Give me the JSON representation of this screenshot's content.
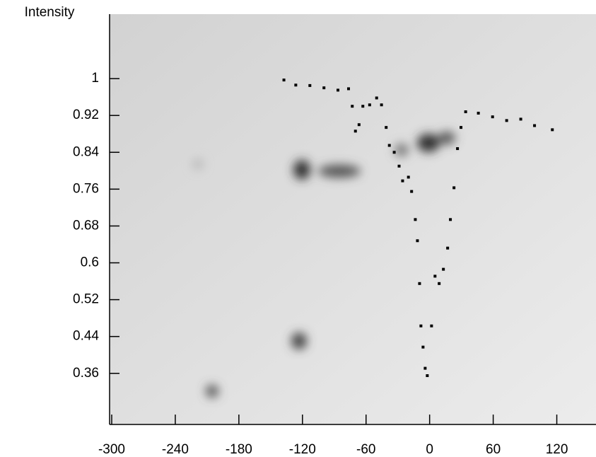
{
  "chart_data": {
    "type": "scatter",
    "y_label": "Intensity",
    "color": "#000000",
    "x": [
      -137.5,
      -126.3,
      -113,
      -99.7,
      -86.5,
      -76.5,
      -73,
      -70,
      -66.6,
      -63,
      -56.6,
      -50,
      -45.4,
      -41,
      -38,
      -33.4,
      -28.8,
      -25.5,
      -20,
      -17,
      -13.5,
      -11.5,
      -9.5,
      -8.2,
      -6.2,
      -4.2,
      -2.2,
      1.8,
      5.1,
      9,
      13,
      17,
      19.6,
      23,
      26.3,
      29.6,
      34,
      46,
      59.4,
      72.7,
      86,
      99,
      115.8
    ],
    "values": [
      0.997,
      0.986,
      0.985,
      0.98,
      0.975,
      0.978,
      0.94,
      0.886,
      0.9,
      0.94,
      0.943,
      0.958,
      0.943,
      0.894,
      0.855,
      0.84,
      0.81,
      0.778,
      0.786,
      0.755,
      0.694,
      0.648,
      0.555,
      0.463,
      0.417,
      0.371,
      0.355,
      0.463,
      0.571,
      0.555,
      0.586,
      0.632,
      0.694,
      0.763,
      0.848,
      0.894,
      0.928,
      0.925,
      0.917,
      0.909,
      0.912,
      0.898,
      0.889
    ],
    "xlim": [
      -302,
      157
    ],
    "ylim": [
      0.249,
      1.14
    ],
    "xticks": [
      -300,
      -240,
      -180,
      -120,
      -60,
      0,
      60,
      120
    ],
    "yticks": [
      1,
      0.92,
      0.84,
      0.76,
      0.68,
      0.6,
      0.52,
      0.44,
      0.36
    ]
  }
}
